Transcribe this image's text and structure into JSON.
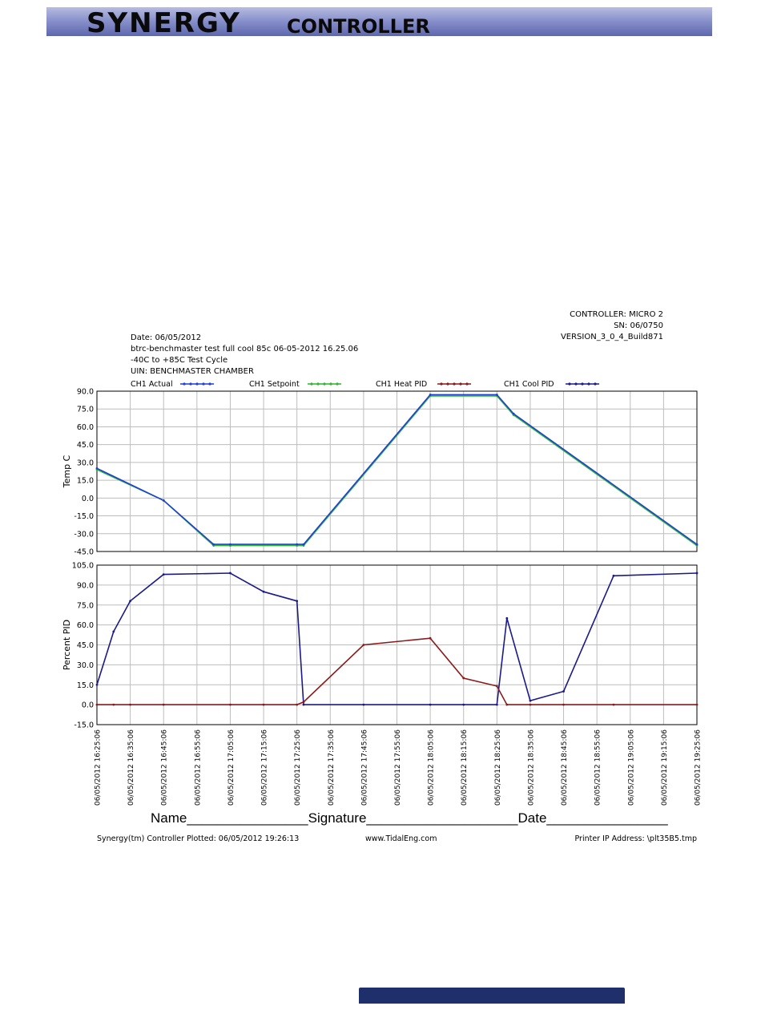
{
  "header": {
    "brand_main": "SYNERGY",
    "brand_sub": "CONTROLLER"
  },
  "info_right": {
    "controller": "CONTROLLER: MICRO 2",
    "sn": "SN:  06/0750",
    "version": "VERSION_3_0_4_Build871"
  },
  "info_left": {
    "date": "Date: 06/05/2012",
    "test_name": "btrc-benchmaster test full cool 85c 06-05-2012 16.25.06",
    "cycle": "-40C to +85C Test Cycle",
    "uin": "UIN: BENCHMASTER CHAMBER"
  },
  "legend": [
    {
      "label": "CH1 Actual",
      "color": "#1f3fd8"
    },
    {
      "label": "CH1 Setpoint",
      "color": "#2db52d"
    },
    {
      "label": "CH1 Heat PID",
      "color": "#8b1a1a"
    },
    {
      "label": "CH1 Cool PID",
      "color": "#1a1a8b"
    }
  ],
  "chart_data": [
    {
      "type": "line",
      "ylabel": "Temp C",
      "ylim": [
        -45,
        90
      ],
      "yticks": [
        "90.0",
        "75.0",
        "60.0",
        "45.0",
        "30.0",
        "15.0",
        "0.0",
        "-15.0",
        "-30.0",
        "-45.0"
      ],
      "x": [
        "16:25:06",
        "16:45:06",
        "17:00:06",
        "17:05:06",
        "17:25:06",
        "17:27:06",
        "18:05:06",
        "18:25:06",
        "18:30:06",
        "19:25:06"
      ],
      "series": [
        {
          "name": "CH1 Setpoint",
          "values": [
            24,
            -2,
            -40,
            -40,
            -40,
            -40,
            86,
            86,
            70,
            -40
          ],
          "color": "#2db52d"
        },
        {
          "name": "CH1 Actual",
          "values": [
            25,
            -2,
            -39,
            -39,
            -39,
            -39,
            87,
            87,
            71,
            -39
          ],
          "color": "#1f3fd8"
        }
      ]
    },
    {
      "type": "line",
      "ylabel": "Percent PID",
      "ylim": [
        -15,
        105
      ],
      "yticks": [
        "105.0",
        "90.0",
        "75.0",
        "60.0",
        "45.0",
        "30.0",
        "15.0",
        "0.0",
        "-15.0"
      ],
      "x": [
        "16:25:06",
        "16:30:06",
        "16:35:06",
        "16:45:06",
        "17:05:06",
        "17:15:06",
        "17:25:06",
        "17:27:06",
        "17:45:06",
        "18:05:06",
        "18:15:06",
        "18:25:06",
        "18:28:06",
        "18:35:06",
        "18:45:06",
        "19:00:06",
        "19:25:06"
      ],
      "series": [
        {
          "name": "CH1 Cool PID",
          "values": [
            15,
            55,
            78,
            98,
            99,
            85,
            78,
            0,
            0,
            0,
            0,
            0,
            65,
            3,
            10,
            97,
            99
          ],
          "color": "#1a1a8b"
        },
        {
          "name": "CH1 Heat PID",
          "values": [
            0,
            0,
            0,
            0,
            0,
            0,
            0,
            2,
            45,
            50,
            20,
            14,
            0,
            0,
            0,
            0,
            0
          ],
          "color": "#8b1a1a"
        }
      ]
    }
  ],
  "x_tick_labels": [
    "06/05/2012 16:25:06",
    "06/05/2012 16:35:06",
    "06/05/2012 16:45:06",
    "06/05/2012 16:55:06",
    "06/05/2012 17:05:06",
    "06/05/2012 17:15:06",
    "06/05/2012 17:25:06",
    "06/05/2012 17:35:06",
    "06/05/2012 17:45:06",
    "06/05/2012 17:55:06",
    "06/05/2012 18:05:06",
    "06/05/2012 18:15:06",
    "06/05/2012 18:25:06",
    "06/05/2012 18:35:06",
    "06/05/2012 18:45:06",
    "06/05/2012 18:55:06",
    "06/05/2012 19:05:06",
    "06/05/2012 19:15:06",
    "06/05/2012 19:25:06"
  ],
  "signature": {
    "text": "Name________________Signature____________________Date________________"
  },
  "footer": {
    "left": "Synergy(tm) Controller Plotted: 06/05/2012 19:26:13",
    "center": "www.TidalEng.com",
    "right": "Printer IP Address: \\plt35B5.tmp"
  }
}
